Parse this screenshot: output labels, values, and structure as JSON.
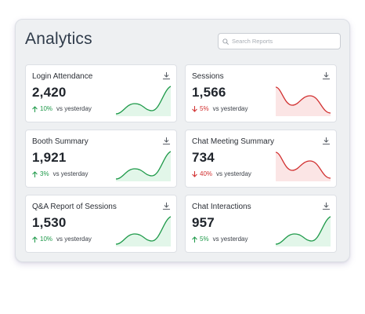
{
  "header": {
    "title": "Analytics",
    "search_placeholder": "Search Reports",
    "search_value": ""
  },
  "colors": {
    "up": "#1f9a4a",
    "up_fill": "#d8f3e1",
    "down": "#d12f2f",
    "down_fill": "#f9dcdc"
  },
  "cards": [
    {
      "title": "Login Attendance",
      "value": "2,420",
      "delta": "10%",
      "direction": "up",
      "compare": "vs yesterday"
    },
    {
      "title": "Sessions",
      "value": "1,566",
      "delta": "5%",
      "direction": "down",
      "compare": "vs yesterday"
    },
    {
      "title": "Booth Summary",
      "value": "1,921",
      "delta": "3%",
      "direction": "up",
      "compare": "vs yesterday"
    },
    {
      "title": "Chat Meeting Summary",
      "value": "734",
      "delta": "40%",
      "direction": "down",
      "compare": "vs yesterday"
    },
    {
      "title": "Q&A Report of Sessions",
      "value": "1,530",
      "delta": "10%",
      "direction": "up",
      "compare": "vs yesterday"
    },
    {
      "title": "Chat Interactions",
      "value": "957",
      "delta": "5%",
      "direction": "up",
      "compare": "vs yesterday"
    }
  ]
}
